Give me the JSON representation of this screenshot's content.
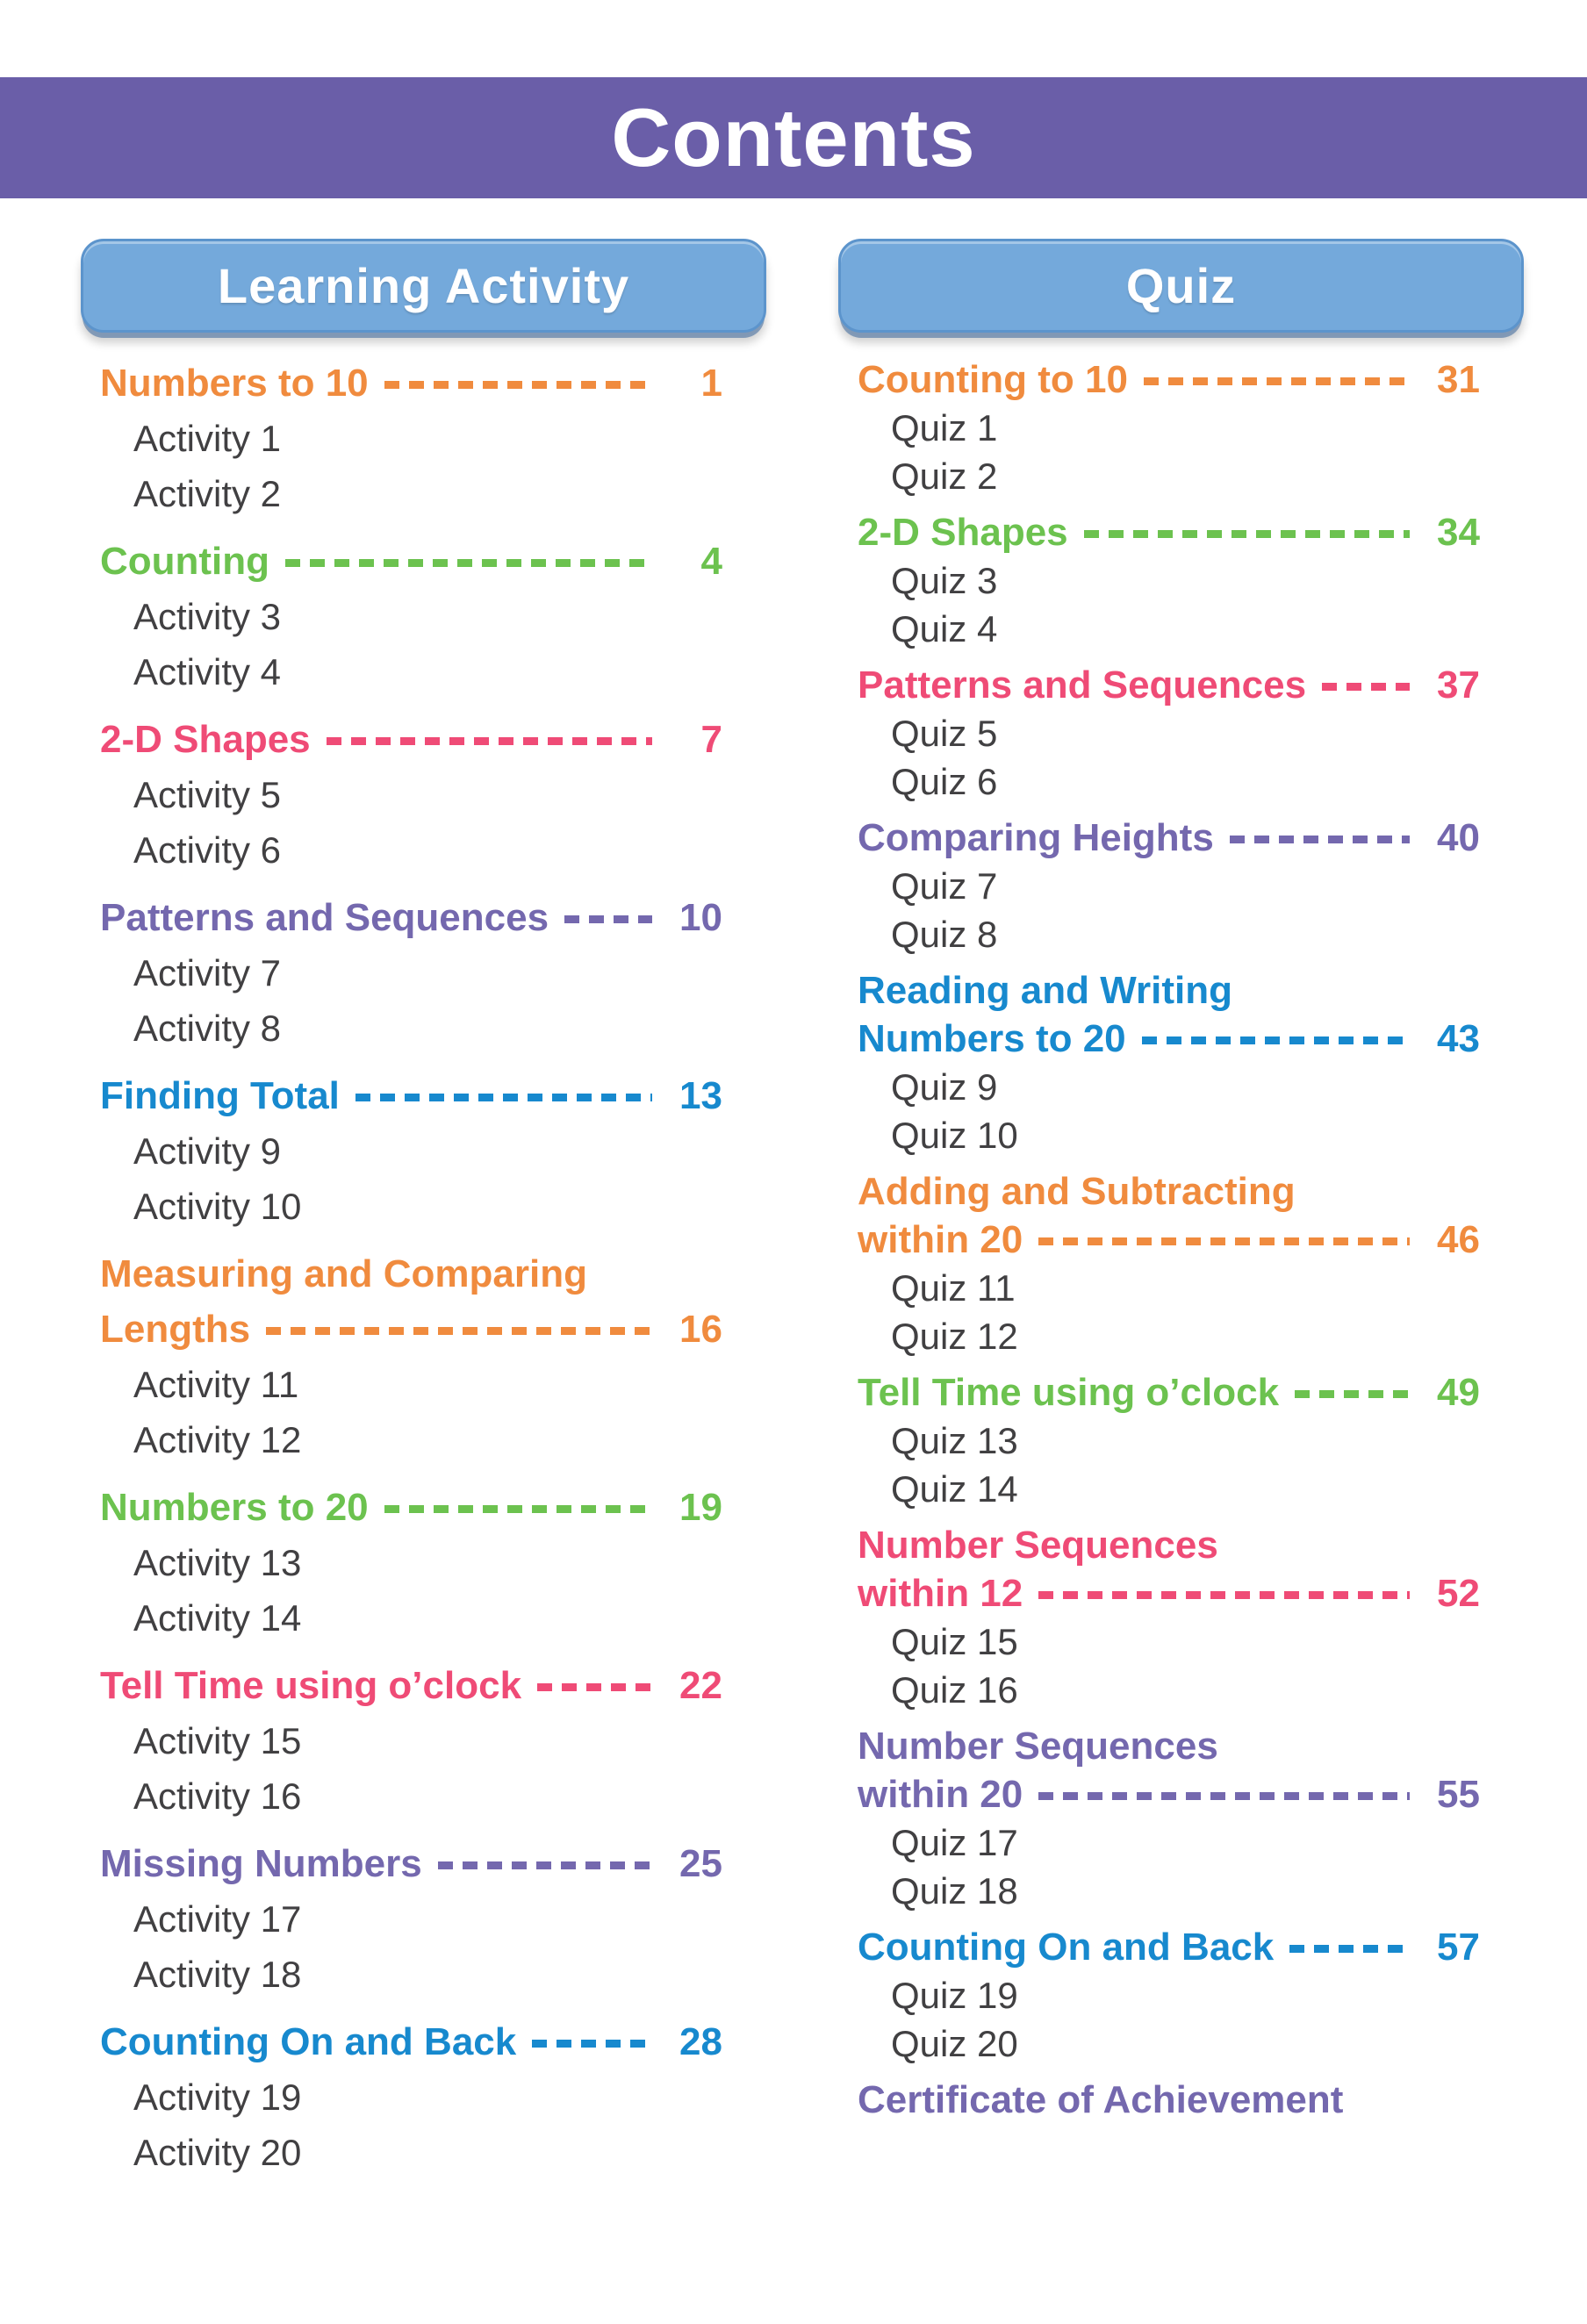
{
  "page": {
    "title": "Contents"
  },
  "colors": {
    "header_bar": "#6A5EA8",
    "header_text": "#FFFFFF",
    "column_button_fill": "#74A9DB",
    "column_button_border": "#5C94CC",
    "item_text": "#414042",
    "orange": "#F08B3E",
    "green": "#6CC24F",
    "pink": "#EF4B76",
    "purple": "#7468AE",
    "blue": "#1789CE"
  },
  "columns": [
    {
      "header": "Learning Activity",
      "sections": [
        {
          "title_lines": [
            "Numbers to 10"
          ],
          "page": "1",
          "color": "#F08B3E",
          "items": [
            "Activity 1",
            "Activity 2"
          ]
        },
        {
          "title_lines": [
            "Counting"
          ],
          "page": "4",
          "color": "#6CC24F",
          "items": [
            "Activity 3",
            "Activity 4"
          ]
        },
        {
          "title_lines": [
            "2-D Shapes"
          ],
          "page": "7",
          "color": "#EF4B76",
          "items": [
            "Activity 5",
            "Activity 6"
          ]
        },
        {
          "title_lines": [
            "Patterns and Sequences"
          ],
          "page": "10",
          "color": "#7468AE",
          "items": [
            "Activity 7",
            "Activity 8"
          ]
        },
        {
          "title_lines": [
            "Finding Total"
          ],
          "page": "13",
          "color": "#1789CE",
          "items": [
            "Activity 9",
            "Activity 10"
          ]
        },
        {
          "title_lines": [
            "Measuring and Comparing",
            "Lengths"
          ],
          "page": "16",
          "color": "#F08B3E",
          "items": [
            "Activity 11",
            "Activity 12"
          ]
        },
        {
          "title_lines": [
            "Numbers to 20"
          ],
          "page": "19",
          "color": "#6CC24F",
          "items": [
            "Activity 13",
            "Activity 14"
          ]
        },
        {
          "title_lines": [
            "Tell Time using o’clock"
          ],
          "page": "22",
          "color": "#EF4B76",
          "items": [
            "Activity 15",
            "Activity 16"
          ]
        },
        {
          "title_lines": [
            "Missing Numbers"
          ],
          "page": "25",
          "color": "#7468AE",
          "items": [
            "Activity 17",
            "Activity 18"
          ]
        },
        {
          "title_lines": [
            "Counting On and Back"
          ],
          "page": "28",
          "color": "#1789CE",
          "items": [
            "Activity 19",
            "Activity 20"
          ]
        }
      ]
    },
    {
      "header": "Quiz",
      "sections": [
        {
          "title_lines": [
            "Counting to 10"
          ],
          "page": "31",
          "color": "#F08B3E",
          "items": [
            "Quiz 1",
            "Quiz 2"
          ]
        },
        {
          "title_lines": [
            "2-D Shapes"
          ],
          "page": "34",
          "color": "#6CC24F",
          "items": [
            "Quiz 3",
            "Quiz 4"
          ]
        },
        {
          "title_lines": [
            "Patterns and Sequences"
          ],
          "page": "37",
          "color": "#EF4B76",
          "items": [
            "Quiz 5",
            "Quiz 6"
          ]
        },
        {
          "title_lines": [
            "Comparing Heights"
          ],
          "page": "40",
          "color": "#7468AE",
          "items": [
            "Quiz 7",
            "Quiz 8"
          ]
        },
        {
          "title_lines": [
            "Reading and Writing",
            "Numbers to 20"
          ],
          "page": "43",
          "color": "#1789CE",
          "items": [
            "Quiz 9",
            "Quiz 10"
          ]
        },
        {
          "title_lines": [
            "Adding and Subtracting",
            "within 20"
          ],
          "page": "46",
          "color": "#F08B3E",
          "items": [
            "Quiz 11",
            "Quiz 12"
          ]
        },
        {
          "title_lines": [
            "Tell Time using o’clock"
          ],
          "page": "49",
          "color": "#6CC24F",
          "items": [
            "Quiz 13",
            "Quiz 14"
          ]
        },
        {
          "title_lines": [
            "Number Sequences",
            "within 12"
          ],
          "page": "52",
          "color": "#EF4B76",
          "items": [
            "Quiz 15",
            "Quiz 16"
          ]
        },
        {
          "title_lines": [
            "Number Sequences",
            "within 20"
          ],
          "page": "55",
          "color": "#7468AE",
          "items": [
            "Quiz 17",
            "Quiz 18"
          ]
        },
        {
          "title_lines": [
            "Counting On and Back"
          ],
          "page": "57",
          "color": "#1789CE",
          "items": [
            "Quiz 19",
            "Quiz 20"
          ]
        },
        {
          "title_lines": [
            "Certificate of Achievement"
          ],
          "page": "",
          "color": "#7468AE",
          "items": []
        }
      ]
    }
  ]
}
